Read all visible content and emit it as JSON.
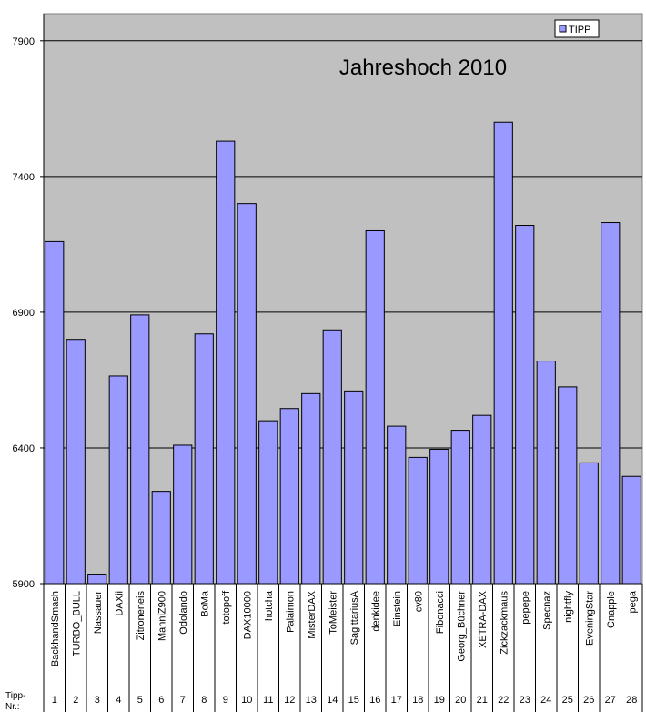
{
  "chart_data": {
    "type": "bar",
    "title": "Jahreshoch 2010",
    "categories": [
      "BackhandSmash",
      "TURBO_BULL",
      "Nassauer",
      "DAXii",
      "Zitroneneis",
      "ManniZ900",
      "Odolando",
      "BoMa",
      "totopoff",
      "DAX10000",
      "hotcha",
      "Palaimon",
      "MisterDAX",
      "ToMeister",
      "SagittariusA",
      "denkidee",
      "Einstein",
      "cv80",
      "Fibonacci",
      "Georg_Büchner",
      "XETRA-DAX",
      "Zickzackmaus",
      "pepepe",
      "Specnaz",
      "nightfly",
      "EveningStar",
      "Cnapple",
      "pega"
    ],
    "category_numbers": [
      1,
      2,
      3,
      4,
      5,
      6,
      7,
      8,
      9,
      10,
      11,
      12,
      13,
      14,
      15,
      16,
      17,
      18,
      19,
      20,
      21,
      22,
      23,
      24,
      25,
      26,
      27,
      28
    ],
    "row_label": [
      "Tipp-",
      "Nr.:"
    ],
    "series": [
      {
        "name": "TIPP",
        "color": "#9999ff",
        "values": [
          7160,
          6800,
          5935,
          6665,
          6890,
          6240,
          6410,
          6820,
          7530,
          7300,
          6500,
          6545,
          6600,
          6835,
          6610,
          7200,
          6480,
          6365,
          6395,
          6465,
          6520,
          7600,
          7220,
          6720,
          6625,
          6345,
          7230,
          6295
        ]
      }
    ],
    "ylim": [
      5900,
      8000
    ],
    "yticks": [
      5900,
      6400,
      6900,
      7400,
      7900
    ],
    "grid": true,
    "legend": "top-right"
  }
}
